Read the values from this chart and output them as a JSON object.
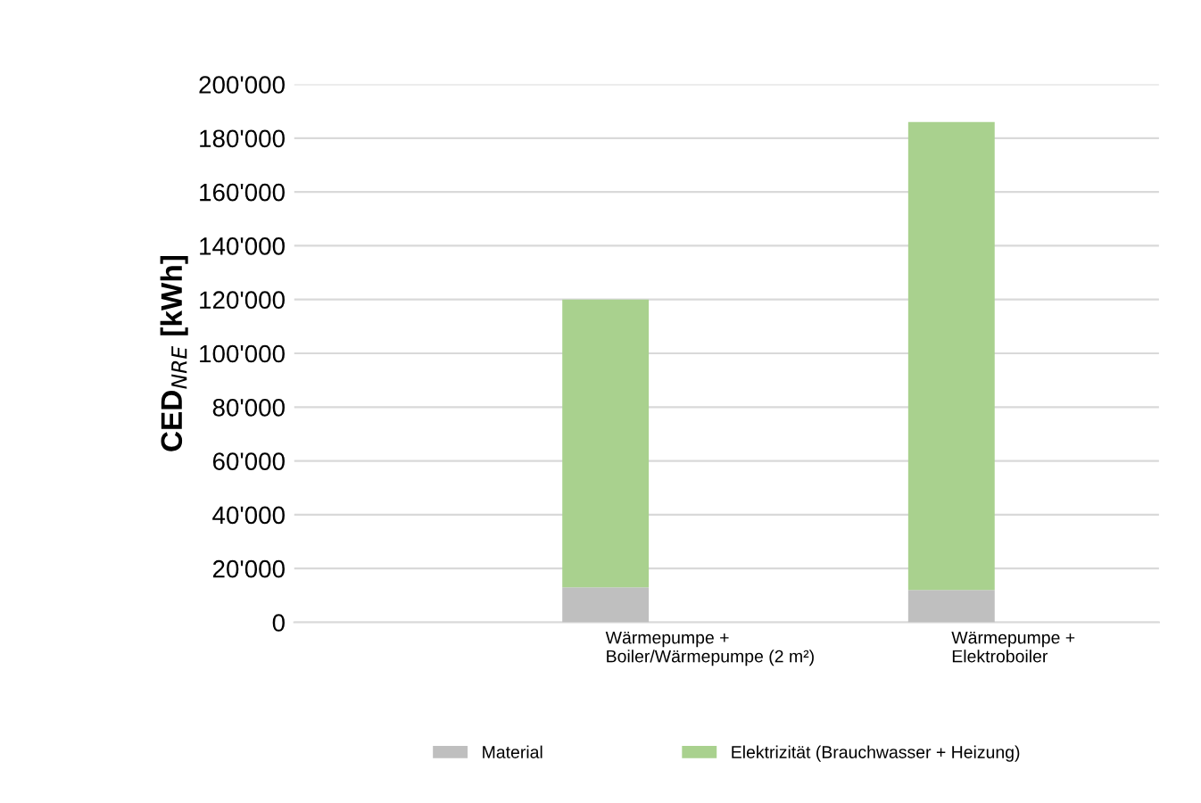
{
  "chart_data": {
    "type": "bar",
    "stacked": true,
    "ylabel": "CED$_{NRE}$ [kWh]",
    "categories": [
      "Wärmepumpe +\nBoiler/Wärmepumpe (2 m²)",
      "Wärmepumpe +\nElektroboiler"
    ],
    "series": [
      {
        "name": "Material",
        "color": "#bfbfbf",
        "values": [
          13000,
          12000
        ]
      },
      {
        "name": "Elektrizität (Brauchwasser + Heizung)",
        "color": "#a9d18e",
        "values": [
          107000,
          174000
        ]
      }
    ],
    "ylim": [
      0,
      200000
    ],
    "yticks": [
      {
        "value": 0,
        "label": "0"
      },
      {
        "value": 20000,
        "label": "20'000"
      },
      {
        "value": 40000,
        "label": "40'000"
      },
      {
        "value": 60000,
        "label": "60'000"
      },
      {
        "value": 80000,
        "label": "80'000"
      },
      {
        "value": 100000,
        "label": "100'000"
      },
      {
        "value": 120000,
        "label": "120'000"
      },
      {
        "value": 140000,
        "label": "140'000"
      },
      {
        "value": 160000,
        "label": "160'000"
      },
      {
        "value": 180000,
        "label": "180'000"
      },
      {
        "value": 200000,
        "label": "200'000"
      }
    ],
    "grid": "y",
    "legend": "bottom"
  }
}
